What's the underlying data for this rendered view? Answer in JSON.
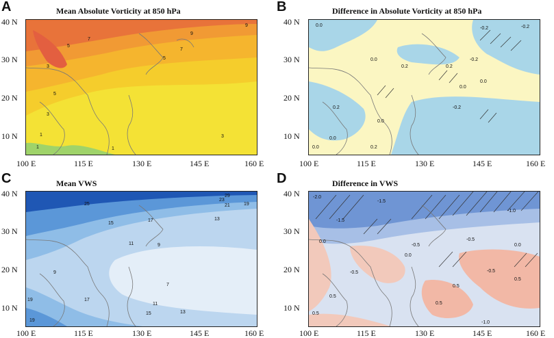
{
  "panels": [
    {
      "letter": "A",
      "title": "Mean Absolute Vorticity at 850 hPa",
      "contour_labels": [
        "9",
        "9",
        "7",
        "5",
        "5",
        "3",
        "3",
        "1",
        "1",
        "7",
        "5",
        "3",
        "1"
      ]
    },
    {
      "letter": "B",
      "title": "Difference in Absolute Vorticity at 850 hPa",
      "contour_labels": [
        "0.0",
        "-0.2",
        "-0.2",
        "0.2",
        "0.0",
        "0.2",
        "-0.2",
        "0.0",
        "0.0",
        "0.2",
        "0.0",
        "0.0",
        "0.2",
        "-0.2",
        "0.0"
      ]
    },
    {
      "letter": "C",
      "title": "Mean VWS",
      "contour_labels": [
        "29",
        "25",
        "23",
        "21",
        "19",
        "17",
        "15",
        "13",
        "11",
        "9",
        "9",
        "7",
        "11",
        "13",
        "15",
        "17",
        "19",
        "19"
      ]
    },
    {
      "letter": "D",
      "title": "Difference in VWS",
      "contour_labels": [
        "-2.0",
        "-1.5",
        "-1.0",
        "-1.5",
        "-0.5",
        "0.0",
        "0.0",
        "-0.5",
        "-0.5",
        "0.5",
        "0.5",
        "0.5",
        "-0.5",
        "0.5",
        "0.0",
        "-1.0",
        "0.5"
      ]
    }
  ],
  "y_ticks": [
    "40 N",
    "30 N",
    "20 N",
    "10 N"
  ],
  "x_ticks": [
    "100 E",
    "115 E",
    "130 E",
    "145 E",
    "160 E"
  ],
  "colors": {
    "vorticity_high": "#e8733a",
    "vorticity_mid": "#f5b52e",
    "vorticity_low": "#f4e235",
    "vorticity_min": "#9fd36a",
    "diff_pos": "#fbf6c2",
    "diff_neg": "#a9d6e8",
    "vws_high": "#1f57b4",
    "vws_mid": "#6ea6dc",
    "vws_low": "#e4eef8",
    "vwsdiff_neg": "#6f95d4",
    "vwsdiff_zero": "#d9e2f1",
    "vwsdiff_pos": "#f2b8a6"
  }
}
